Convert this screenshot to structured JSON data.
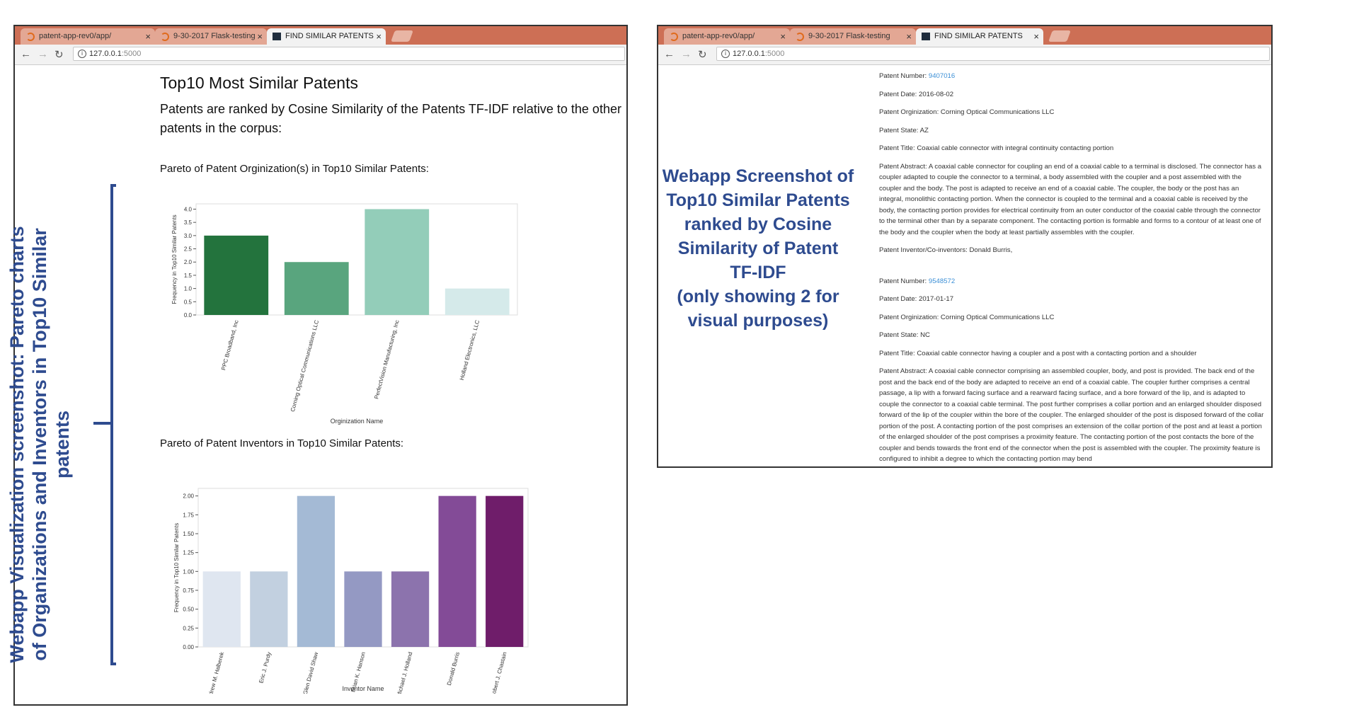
{
  "browser": {
    "tabs": [
      {
        "label": "patent-app-rev0/app/"
      },
      {
        "label": "9-30-2017 Flask-testing"
      },
      {
        "label": "FIND SIMILAR PATENTS"
      }
    ],
    "url_host": "127.0.0.1",
    "url_port": ":5000",
    "close_glyph": "×"
  },
  "left_window": {
    "title": "Top10 Most Similar Patents",
    "lead": "Patents are ranked by Cosine Similarity of the Patents TF-IDF relative to the other patents in the corpus:",
    "org_chart_heading": "Pareto of Patent Orginization(s) in Top10 Similar Patents:",
    "inv_chart_heading": "Pareto of Patent Inventors in Top10 Similar Patents:"
  },
  "chart_data": [
    {
      "type": "bar",
      "categories": [
        "PPC Broadband, Inc",
        "Corning Optical Communications LLC",
        "PerfectVision Manufacturing, Inc",
        "Holland Electronics, LLC"
      ],
      "values": [
        3,
        2,
        4,
        1
      ],
      "colors": [
        "#23733d",
        "#59a57e",
        "#93cdb9",
        "#d5eaea"
      ],
      "xlabel": "Orginization Name",
      "ylabel": "Frequency in Top10 Similar Patents",
      "ylim": [
        0,
        4.2
      ],
      "yticks": [
        "0.0",
        "0.5",
        "1.0",
        "1.5",
        "2.0",
        "2.5",
        "3.0",
        "3.5",
        "4.0"
      ],
      "grid": false
    },
    {
      "type": "bar",
      "categories": [
        "Andrew M. Halberek",
        "Eric J. Purdy",
        "Glen David Shaw",
        "Brian K. Hanson",
        "Michael J. Holland",
        "Donald Burris",
        "Robert J. Chastain"
      ],
      "values": [
        1,
        1,
        2,
        1,
        1,
        2,
        2
      ],
      "colors": [
        "#dfe6f0",
        "#c2d0e0",
        "#a4bad5",
        "#9499c3",
        "#8c73ad",
        "#834b97",
        "#6f1d6a"
      ],
      "xlabel": "Inventor Name",
      "ylabel": "Frequency in Top10 Similar Patents",
      "ylim": [
        0,
        2.1
      ],
      "yticks": [
        "0.00",
        "0.25",
        "0.50",
        "0.75",
        "1.00",
        "1.25",
        "1.50",
        "1.75",
        "2.00"
      ],
      "grid": false
    }
  ],
  "annotations": {
    "left_label": "Webapp Visualization screenshot: Pareto charts of Organizations and Inventors in Top10 Similar patents",
    "right_lines": [
      "Webapp Screenshot of",
      "Top10 Similar Patents",
      "ranked by Cosine",
      "Similarity of Patent",
      "TF-IDF",
      "(only showing 2 for",
      "visual purposes)"
    ]
  },
  "patents": [
    {
      "number_label": "Patent Number: ",
      "number": "9407016",
      "date": "Patent Date: 2016-08-02",
      "org": "Patent Orginization: Corning Optical Communications LLC",
      "state": "Patent State: AZ",
      "title": "Patent Title: Coaxial cable connector with integral continuity contacting portion",
      "abstract": "Patent Abstract: A coaxial cable connector for coupling an end of a coaxial cable to a terminal is disclosed. The connector has a coupler adapted to couple the connector to a terminal, a body assembled with the coupler and a post assembled with the coupler and the body. The post is adapted to receive an end of a coaxial cable. The coupler, the body or the post has an integral, monolithic contacting portion. When the connector is coupled to the terminal and a coaxial cable is received by the body, the contacting portion provides for electrical continuity from an outer conductor of the coaxial cable through the connector to the terminal other than by a separate component. The contacting portion is formable and forms to a contour of at least one of the body and the coupler when the body at least partially assembles with the coupler.",
      "inventors": "Patent Inventor/Co-inventors: Donald Burris,"
    },
    {
      "number_label": "Patent Number: ",
      "number": "9548572",
      "date": "Patent Date: 2017-01-17",
      "org": "Patent Orginization: Corning Optical Communications LLC",
      "state": "Patent State: NC",
      "title": "Patent Title: Coaxial cable connector having a coupler and a post with a contacting portion and a shoulder",
      "abstract": "Patent Abstract: A coaxial cable connector comprising an assembled coupler, body, and post is provided. The back end of the post and the back end of the body are adapted to receive an end of a coaxial cable. The coupler further comprises a central passage, a lip with a forward facing surface and a rearward facing surface, and a bore forward of the lip, and is adapted to couple the connector to a coaxial cable terminal. The post further comprises a collar portion and an enlarged shoulder disposed forward of the lip of the coupler within the bore of the coupler. The enlarged shoulder of the post is disposed forward of the collar portion of the post. A contacting portion of the post comprises an extension of the collar portion of the post and at least a portion of the enlarged shoulder of the post comprises a proximity feature. The contacting portion of the post contacts the bore of the coupler and bends towards the front end of the connector when the post is assembled with the coupler. The proximity feature is configured to inhibit a degree to which the contacting portion may bend"
    }
  ]
}
